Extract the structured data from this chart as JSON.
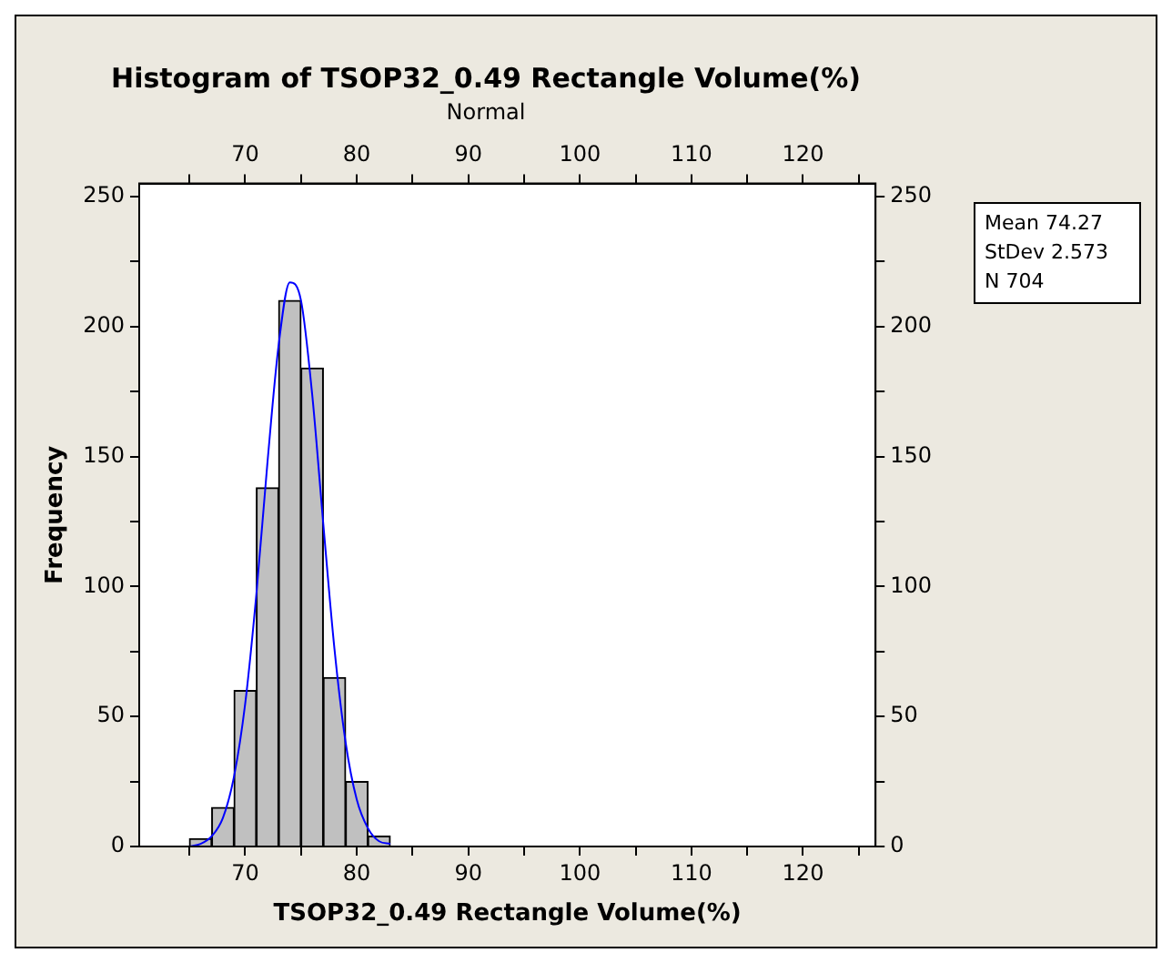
{
  "chart_data": {
    "type": "histogram",
    "title": "Histogram of TSOP32_0.49 Rectangle Volume(%)",
    "subtitle": "Normal",
    "xlabel": "TSOP32_0.49 Rectangle Volume(%)",
    "ylabel": "Frequency",
    "bins": [
      65,
      67,
      69,
      71,
      73,
      75,
      77,
      79,
      81,
      83
    ],
    "values": [
      3,
      15,
      60,
      138,
      210,
      184,
      65,
      25,
      4
    ],
    "color": "#c0c0c0",
    "series": [
      {
        "type": "line",
        "color": "#0000ff",
        "x": [
          65,
          66,
          67,
          68,
          69,
          70,
          71,
          72,
          73,
          74,
          75,
          76,
          77,
          78,
          79,
          80,
          81,
          82,
          83
        ],
        "values": [
          0,
          1,
          4,
          11,
          27,
          55,
          97,
          148,
          193,
          217,
          210,
          174,
          124,
          76,
          40,
          18,
          7,
          2,
          1
        ]
      }
    ],
    "xlim": [
      60.5,
      126.5
    ],
    "xticks": [
      {
        "value": 65,
        "label": null
      },
      70,
      {
        "value": 75,
        "label": null
      },
      80,
      {
        "value": 85,
        "label": null
      },
      90,
      {
        "value": 95,
        "label": null
      },
      100,
      {
        "value": 105,
        "label": null
      },
      110,
      {
        "value": 115,
        "label": null
      },
      120,
      {
        "value": 125,
        "label": null
      }
    ],
    "x2lim": [
      60.5,
      126.5
    ],
    "x2ticks": [
      {
        "value": 65,
        "label": null
      },
      70,
      {
        "value": 75,
        "label": null
      },
      80,
      {
        "value": 85,
        "label": null
      },
      90,
      {
        "value": 95,
        "label": null
      },
      100,
      {
        "value": 105,
        "label": null
      },
      110,
      {
        "value": 115,
        "label": null
      },
      120,
      {
        "value": 125,
        "label": null
      }
    ],
    "ylim": [
      0,
      255
    ],
    "yticks": [
      0,
      {
        "value": 25,
        "label": null
      },
      50,
      {
        "value": 75,
        "label": null
      },
      100,
      {
        "value": 125,
        "label": null
      },
      150,
      {
        "value": 175,
        "label": null
      },
      200,
      {
        "value": 225,
        "label": null
      },
      250
    ],
    "y2lim": [
      0,
      255
    ],
    "y2ticks": [
      0,
      {
        "value": 25,
        "label": null
      },
      50,
      {
        "value": 75,
        "label": null
      },
      100,
      {
        "value": 125,
        "label": null
      },
      150,
      {
        "value": 175,
        "label": null
      },
      200,
      {
        "value": 225,
        "label": null
      },
      250
    ],
    "annotations": [
      "Mean 74.27",
      "StDev 2.573",
      "N 704"
    ],
    "grid": false,
    "legend": false,
    "marker": "none",
    "line_style": "solid"
  }
}
